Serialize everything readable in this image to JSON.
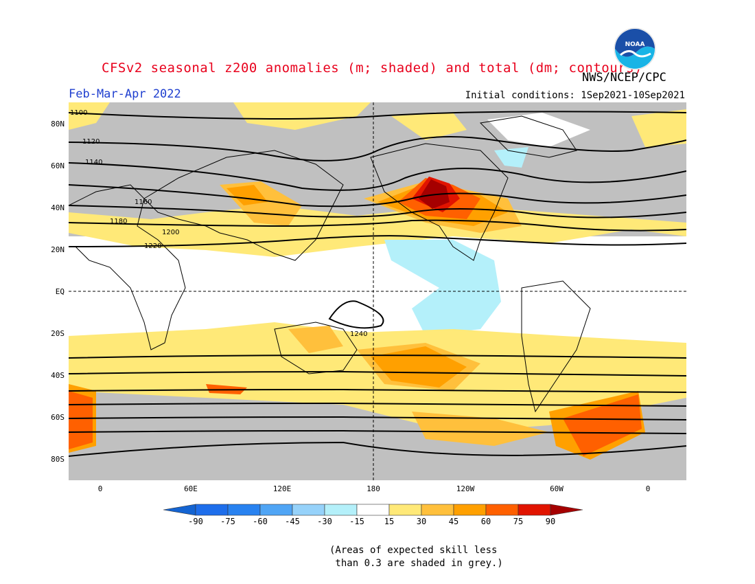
{
  "title": "CFSv2 seasonal z200 anomalies (m; shaded) and total (dm; contours)",
  "agency": "NWS/NCEP/CPC",
  "season": "Feb-Mar-Apr 2022",
  "initial_conditions": "Initial conditions: 1Sep2021-10Sep2021",
  "logo_icon": "noaa-logo-icon",
  "lat_labels": [
    "80N",
    "60N",
    "40N",
    "20N",
    "EQ",
    "20S",
    "40S",
    "60S",
    "80S"
  ],
  "lon_labels": [
    "0",
    "60E",
    "120E",
    "180",
    "120W",
    "60W",
    "0"
  ],
  "colorbar": {
    "labels": [
      "-90",
      "-75",
      "-60",
      "-45",
      "-30",
      "-15",
      "15",
      "30",
      "45",
      "60",
      "75",
      "90"
    ],
    "colors": [
      "#1464d2",
      "#1e6eeb",
      "#2882f0",
      "#50a5f5",
      "#96d2fa",
      "#b4f0fa",
      "#ffffff",
      "#ffe978",
      "#ffc03c",
      "#ffa000",
      "#ff6000",
      "#e11400",
      "#a50000"
    ]
  },
  "contour_labels": [
    "1100",
    "1120",
    "1140",
    "1160",
    "1180",
    "1200",
    "1220",
    "1240"
  ],
  "note": "(Areas of expected skill less\n than 0.3 are shaded in grey.)"
}
